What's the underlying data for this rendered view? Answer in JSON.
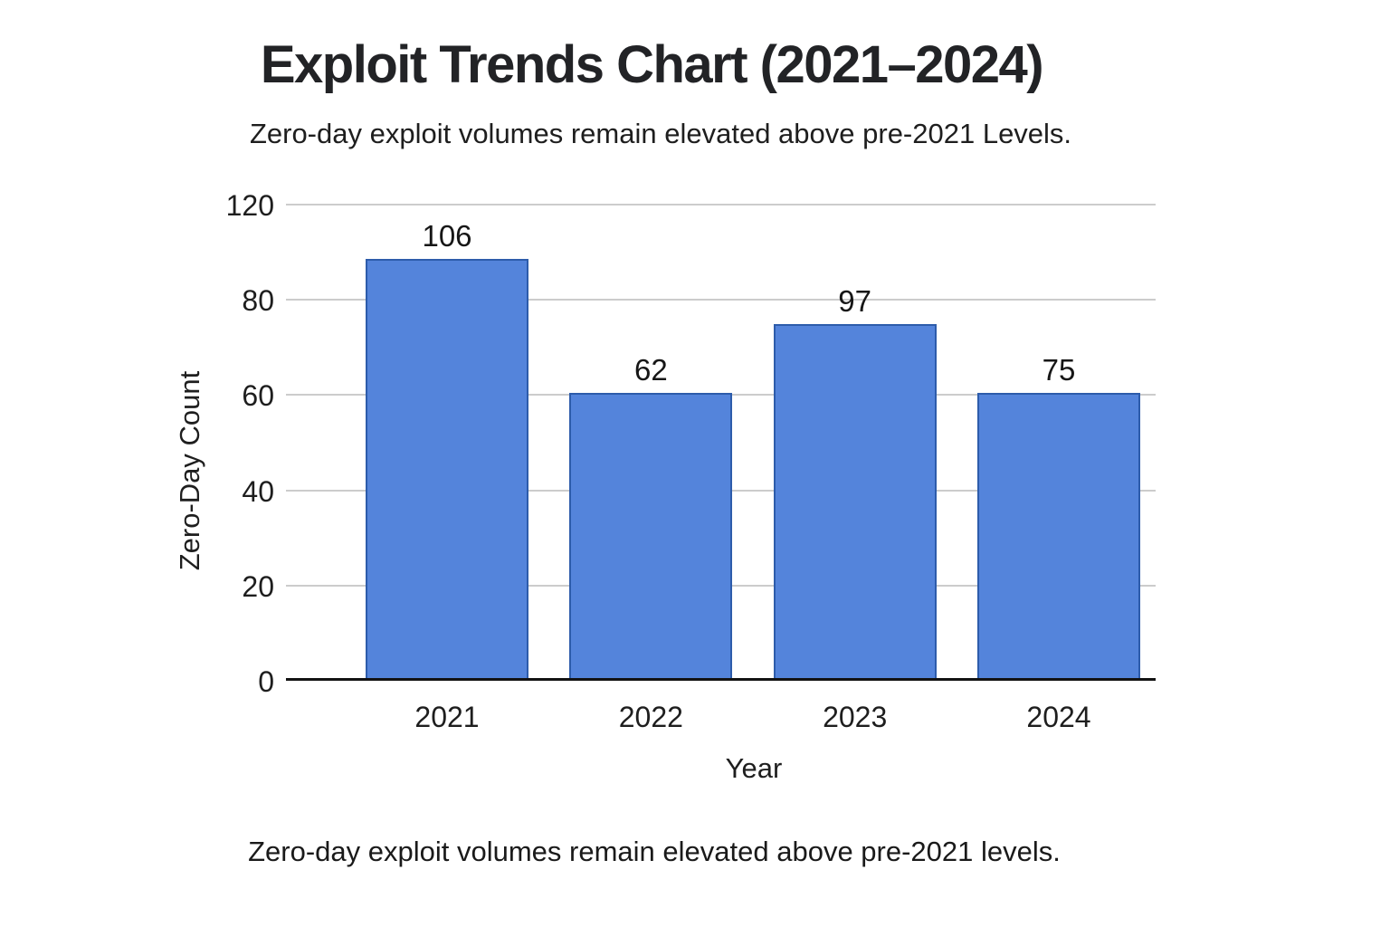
{
  "chart": {
    "title": "Exploit Trends Chart (2021–2024)",
    "subtitle": "Zero-day exploit volumes remain elevated above pre-2021 Levels.",
    "caption": "Zero-day exploit volumes remain elevated above pre-2021 levels.",
    "xlabel": "Year",
    "ylabel": "Zero-Day Count"
  },
  "chart_data": {
    "type": "bar",
    "title": "Exploit Trends Chart (2021–2024)",
    "subtitle": "Zero-day exploit volumes remain elevated above pre-2021 Levels.",
    "caption": "Zero-day exploit volumes remain elevated above pre-2021 levels.",
    "xlabel": "Year",
    "ylabel": "Zero-Day Count",
    "categories": [
      "2021",
      "2022",
      "2023",
      "2024"
    ],
    "values": [
      106,
      62,
      97,
      75
    ],
    "ytick_labels": [
      "120",
      "80",
      "60",
      "40",
      "20",
      "0"
    ],
    "grid": true,
    "legend": false,
    "axis_note": "y ticks evenly spaced as printed (no 100 label); bars drawn lower than their printed values",
    "render": {
      "bar_top_fractions": [
        0.886,
        0.605,
        0.749,
        0.605
      ]
    },
    "colors": {
      "bar_fill": "#5484DB",
      "bar_border": "#2D5CAB",
      "gridline": "#CCCCCC",
      "axis_line": "#131313",
      "text": "#1E1E1E"
    }
  }
}
